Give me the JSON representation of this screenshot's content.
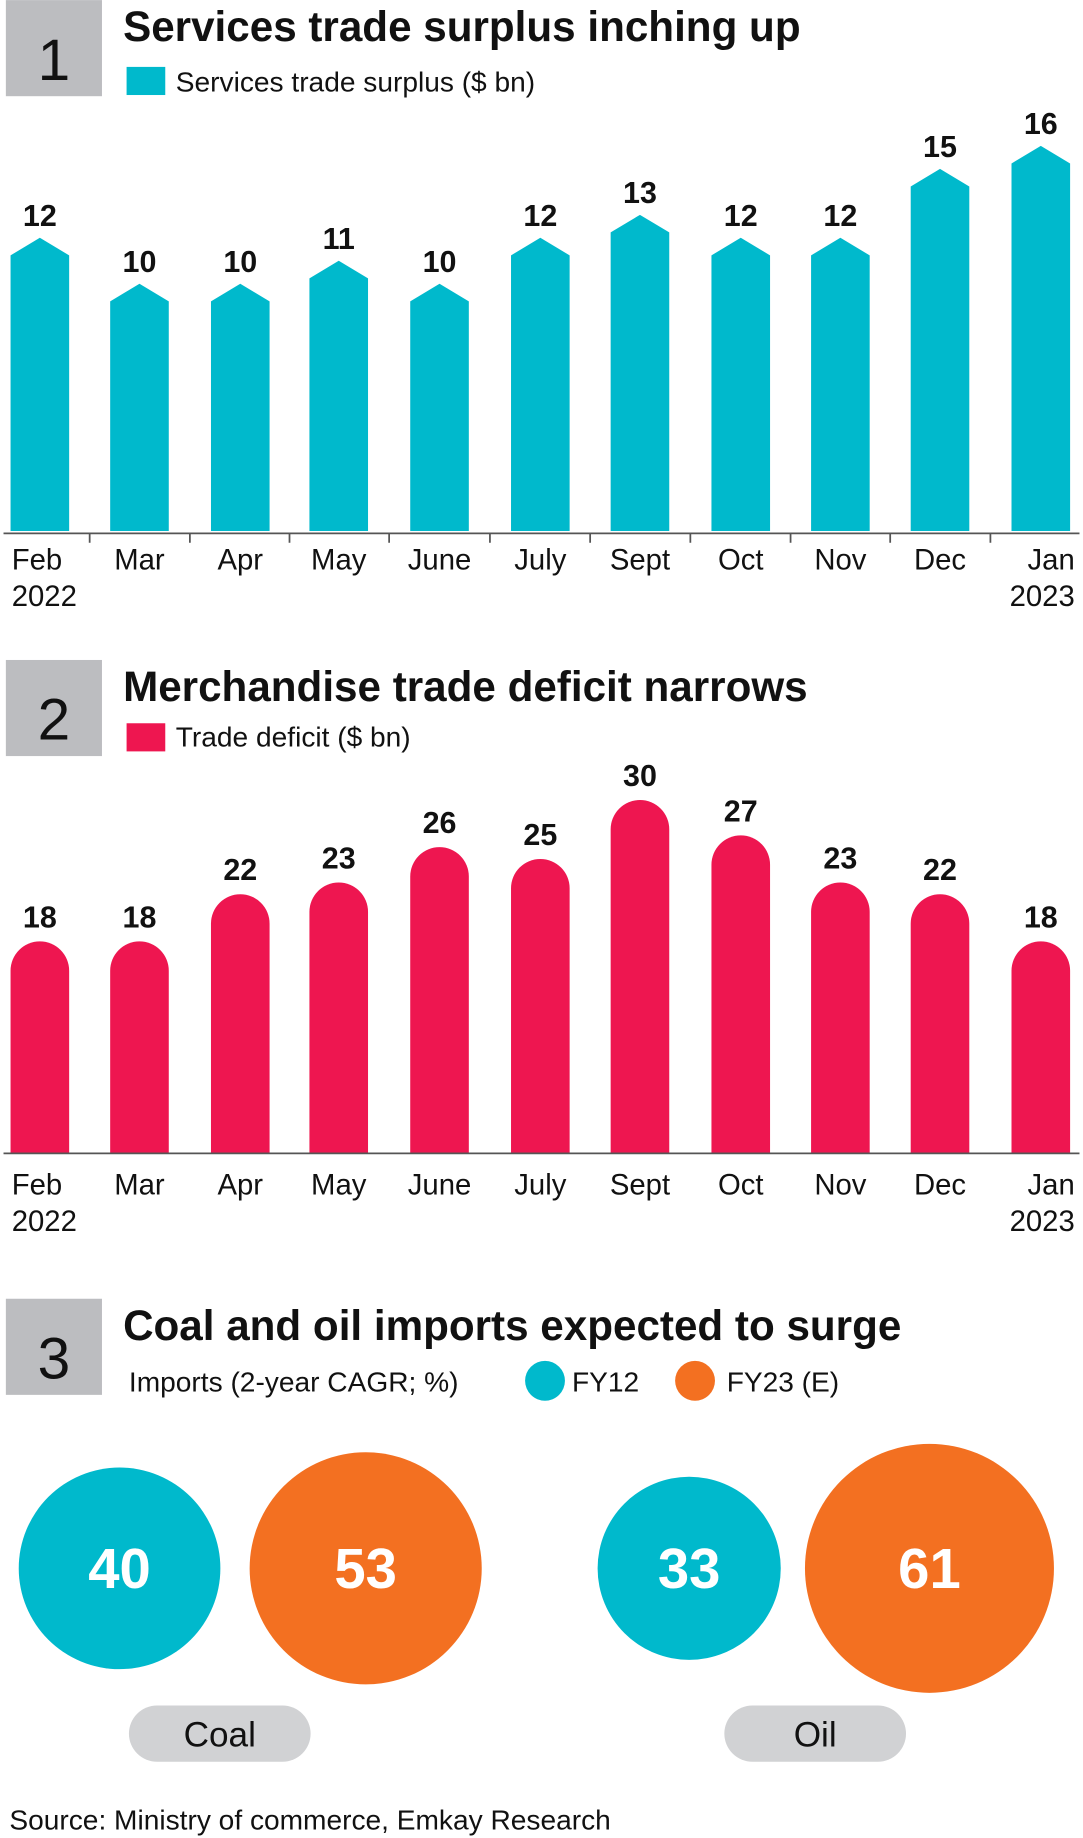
{
  "colors": {
    "teal": "#00B9CC",
    "crimson": "#EE1650",
    "orange": "#F37021",
    "panel_gray": "#BCBDC0",
    "pill_gray": "#D1D2D4"
  },
  "chart_data": [
    {
      "type": "bar",
      "number": "1",
      "title": "Services trade surplus inching up",
      "legend": "Services trade surplus ($ bn)",
      "categories": [
        [
          "Feb",
          "2022"
        ],
        [
          "Mar"
        ],
        [
          "Apr"
        ],
        [
          "May"
        ],
        [
          "June"
        ],
        [
          "July"
        ],
        [
          "Sept"
        ],
        [
          "Oct"
        ],
        [
          "Nov"
        ],
        [
          "Dec"
        ],
        [
          "Jan",
          "2023"
        ]
      ],
      "series": [
        {
          "name": "Services trade surplus ($ bn)",
          "values": [
            12,
            10,
            10,
            11,
            10,
            12,
            13,
            12,
            12,
            15,
            16
          ]
        }
      ],
      "ylim": [
        0,
        16
      ]
    },
    {
      "type": "bar",
      "number": "2",
      "title": "Merchandise trade deficit narrows",
      "legend": "Trade deficit ($ bn)",
      "categories": [
        [
          "Feb",
          "2022"
        ],
        [
          "Mar"
        ],
        [
          "Apr"
        ],
        [
          "May"
        ],
        [
          "June"
        ],
        [
          "July"
        ],
        [
          "Sept"
        ],
        [
          "Oct"
        ],
        [
          "Nov"
        ],
        [
          "Dec"
        ],
        [
          "Jan",
          "2023"
        ]
      ],
      "series": [
        {
          "name": "Trade deficit ($ bn)",
          "values": [
            18,
            18,
            22,
            23,
            26,
            25,
            30,
            27,
            23,
            22,
            18
          ]
        }
      ],
      "ylim": [
        0,
        30
      ]
    },
    {
      "type": "bubble",
      "number": "3",
      "title": "Coal and oil imports expected to surge",
      "legend_label": "Imports (2-year CAGR; %)",
      "series_names": [
        "FY12",
        "FY23 (E)"
      ],
      "groups": [
        {
          "label": "Coal",
          "values": [
            40,
            53
          ]
        },
        {
          "label": "Oil",
          "values": [
            33,
            61
          ]
        }
      ]
    }
  ],
  "source": "Source: Ministry of commerce, Emkay Research"
}
